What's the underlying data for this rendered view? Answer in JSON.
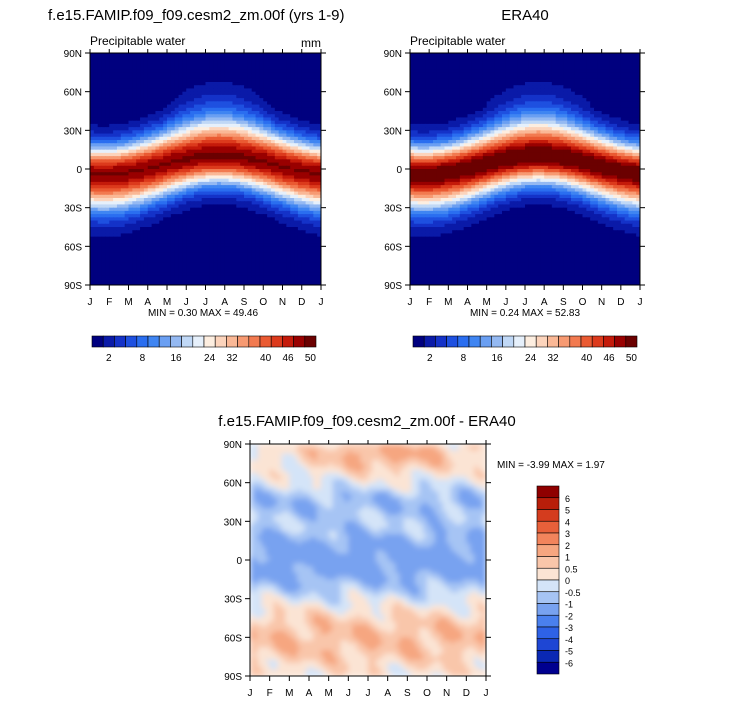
{
  "panels": [
    {
      "title": "f.e15.FAMIP.f09_f09.cesm2_zm.00f (yrs 1-9)",
      "left_label": "Precipitable water",
      "right_label": "mm",
      "stats": "MIN =   0.30 MAX =  49.46"
    },
    {
      "title": "ERA40",
      "left_label": "Precipitable water",
      "right_label": "",
      "stats": "MIN =   0.24 MAX =  52.83"
    },
    {
      "title": "f.e15.FAMIP.f09_f09.cesm2_zm.00f - ERA40",
      "left_label": "",
      "right_label": "",
      "stats": "MIN =  -3.99 MAX =   1.97"
    }
  ],
  "colorbar_top": {
    "colors": [
      "#00007f",
      "#0a1aa8",
      "#1432c8",
      "#1e50e0",
      "#2a6ef0",
      "#3f85f2",
      "#6a9ff2",
      "#94b9f2",
      "#c0d8f6",
      "#e6f0fb",
      "#fdeee0",
      "#fcd4bc",
      "#fab896",
      "#f79a72",
      "#f27a50",
      "#ea5a32",
      "#dc3a1c",
      "#c41a0a",
      "#990000",
      "#6b0000"
    ],
    "labels": [
      "2",
      "8",
      "16",
      "24",
      "32",
      "40",
      "46",
      "50"
    ]
  },
  "colorbar_diff": {
    "colors": [
      "#00008f",
      "#0a28b4",
      "#1e46d4",
      "#2e62e6",
      "#4a80ee",
      "#78a2f0",
      "#a6c4f4",
      "#d4e4f8",
      "#fbe4d4",
      "#f9c6aa",
      "#f6a680",
      "#f2845c",
      "#e8603a",
      "#d43c1e",
      "#b81e0a",
      "#8f0000"
    ],
    "labels": [
      "6",
      "5",
      "4",
      "3",
      "2",
      "1",
      "0.5",
      "0",
      "-0.5",
      "-1",
      "-2",
      "-3",
      "-4",
      "-5",
      "-6"
    ]
  },
  "chart_data": [
    {
      "type": "heatmap",
      "title": "f.e15.FAMIP.f09_f09.cesm2_zm.00f (yrs 1-9)",
      "variable": "Precipitable water",
      "units": "mm",
      "x": [
        "J",
        "F",
        "M",
        "A",
        "M",
        "J",
        "J",
        "A",
        "S",
        "O",
        "N",
        "D",
        "J"
      ],
      "y": [
        "90S",
        "60S",
        "30S",
        "0",
        "30N",
        "60N",
        "90N"
      ],
      "levels": [
        2,
        4,
        6,
        8,
        10,
        12,
        14,
        16,
        18,
        20,
        22,
        24,
        26,
        28,
        30,
        32,
        34,
        36,
        38,
        40,
        42,
        44,
        46,
        48,
        50
      ],
      "min": 0.3,
      "max": 49.46
    },
    {
      "type": "heatmap",
      "title": "ERA40",
      "variable": "Precipitable water",
      "x": [
        "J",
        "F",
        "M",
        "A",
        "M",
        "J",
        "J",
        "A",
        "S",
        "O",
        "N",
        "D",
        "J"
      ],
      "y": [
        "90S",
        "60S",
        "30S",
        "0",
        "30N",
        "60N",
        "90N"
      ],
      "levels": [
        2,
        4,
        6,
        8,
        10,
        12,
        14,
        16,
        18,
        20,
        22,
        24,
        26,
        28,
        30,
        32,
        34,
        36,
        38,
        40,
        42,
        44,
        46,
        48,
        50
      ],
      "min": 0.24,
      "max": 52.83
    },
    {
      "type": "heatmap",
      "title": "f.e15.FAMIP.f09_f09.cesm2_zm.00f - ERA40",
      "x": [
        "J",
        "F",
        "M",
        "A",
        "M",
        "J",
        "J",
        "A",
        "S",
        "O",
        "N",
        "D",
        "J"
      ],
      "y": [
        "90S",
        "60S",
        "30S",
        "0",
        "30N",
        "60N",
        "90N"
      ],
      "levels": [
        -6,
        -5,
        -4,
        -3,
        -2,
        -1,
        -0.5,
        0,
        0.5,
        1,
        2,
        3,
        4,
        5,
        6
      ],
      "min": -3.99,
      "max": 1.97
    }
  ]
}
